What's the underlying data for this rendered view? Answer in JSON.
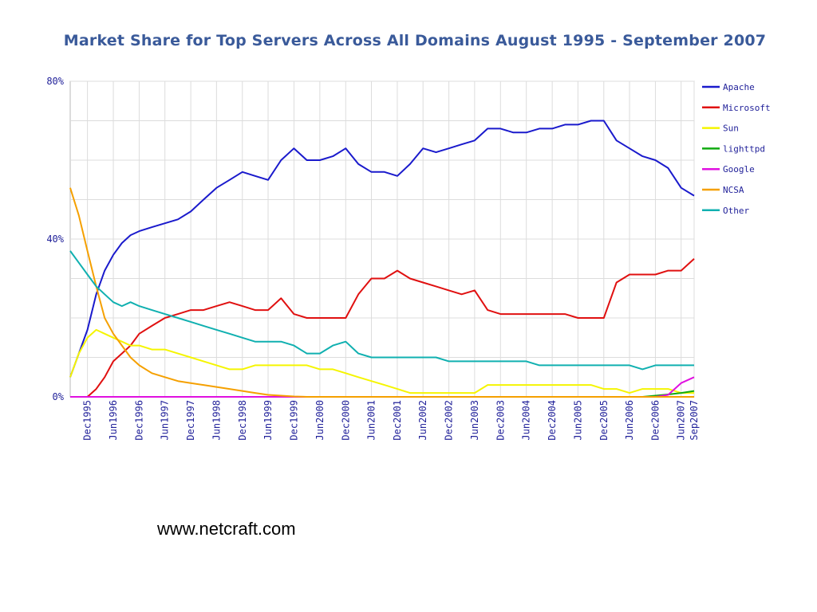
{
  "chart_data": {
    "type": "line",
    "title": "Market Share for Top Servers Across All Domains August 1995 - September 2007",
    "xlabel": "",
    "ylabel": "",
    "ylim": [
      0,
      80
    ],
    "y_ticks": [
      "0%",
      "40%",
      "80%"
    ],
    "x_ticks": [
      "Dec1995",
      "Jun1996",
      "Dec1996",
      "Jun1997",
      "Dec1997",
      "Jun1998",
      "Dec1998",
      "Jun1999",
      "Dec1999",
      "Jun2000",
      "Dec2000",
      "Jun2001",
      "Dec2001",
      "Jun2002",
      "Dec2002",
      "Jun2003",
      "Dec2003",
      "Jun2004",
      "Dec2004",
      "Jun2005",
      "Dec2005",
      "Jun2006",
      "Dec2006",
      "Jun2007",
      "Sep2007"
    ],
    "grid": true,
    "legend_position": "right",
    "x": [
      "1995-08",
      "1995-10",
      "1995-12",
      "1996-02",
      "1996-04",
      "1996-06",
      "1996-08",
      "1996-10",
      "1996-12",
      "1997-03",
      "1997-06",
      "1997-09",
      "1997-12",
      "1998-03",
      "1998-06",
      "1998-09",
      "1998-12",
      "1999-03",
      "1999-06",
      "1999-09",
      "1999-12",
      "2000-03",
      "2000-06",
      "2000-09",
      "2000-12",
      "2001-03",
      "2001-06",
      "2001-09",
      "2001-12",
      "2002-03",
      "2002-06",
      "2002-09",
      "2002-12",
      "2003-03",
      "2003-06",
      "2003-09",
      "2003-12",
      "2004-03",
      "2004-06",
      "2004-09",
      "2004-12",
      "2005-03",
      "2005-06",
      "2005-09",
      "2005-12",
      "2006-03",
      "2006-06",
      "2006-09",
      "2006-12",
      "2007-03",
      "2007-06",
      "2007-09"
    ],
    "series": [
      {
        "name": "Apache",
        "color": "#1a1acc",
        "values": [
          5,
          11,
          17,
          26,
          32,
          36,
          39,
          41,
          42,
          43,
          44,
          45,
          47,
          50,
          53,
          55,
          57,
          56,
          55,
          60,
          63,
          60,
          60,
          61,
          63,
          59,
          57,
          57,
          56,
          59,
          63,
          62,
          63,
          64,
          65,
          68,
          68,
          67,
          67,
          68,
          68,
          69,
          69,
          70,
          70,
          65,
          63,
          61,
          60,
          58,
          53,
          51
        ]
      },
      {
        "name": "Microsoft",
        "color": "#e01010",
        "values": [
          0,
          0,
          0,
          2,
          5,
          9,
          11,
          13,
          16,
          18,
          20,
          21,
          22,
          22,
          23,
          24,
          23,
          22,
          22,
          25,
          21,
          20,
          20,
          20,
          20,
          26,
          30,
          30,
          32,
          30,
          29,
          28,
          27,
          26,
          27,
          22,
          21,
          21,
          21,
          21,
          21,
          21,
          20,
          20,
          20,
          29,
          31,
          31,
          31,
          32,
          32,
          35
        ]
      },
      {
        "name": "Sun",
        "color": "#f5f500",
        "values": [
          5,
          11,
          15,
          17,
          16,
          15,
          14,
          13,
          13,
          12,
          12,
          11,
          10,
          9,
          8,
          7,
          7,
          8,
          8,
          8,
          8,
          8,
          7,
          7,
          6,
          5,
          4,
          3,
          2,
          1,
          1,
          1,
          1,
          1,
          1,
          3,
          3,
          3,
          3,
          3,
          3,
          3,
          3,
          3,
          2,
          2,
          1,
          2,
          2,
          2,
          1,
          1
        ]
      },
      {
        "name": "lighttpd",
        "color": "#10aa10",
        "values": [
          0,
          0,
          0,
          0,
          0,
          0,
          0,
          0,
          0,
          0,
          0,
          0,
          0,
          0,
          0,
          0,
          0,
          0,
          0,
          0,
          0,
          0,
          0,
          0,
          0,
          0,
          0,
          0,
          0,
          0,
          0,
          0,
          0,
          0,
          0,
          0,
          0,
          0,
          0,
          0,
          0,
          0,
          0,
          0,
          0,
          0,
          0,
          0,
          0.3,
          0.6,
          1,
          1.5
        ]
      },
      {
        "name": "Google",
        "color": "#e010e0",
        "values": [
          0,
          0,
          0,
          0,
          0,
          0,
          0,
          0,
          0,
          0,
          0,
          0,
          0,
          0,
          0,
          0,
          0,
          0,
          0,
          0,
          0,
          0,
          0,
          0,
          0,
          0,
          0,
          0,
          0,
          0,
          0,
          0,
          0,
          0,
          0,
          0,
          0,
          0,
          0,
          0,
          0,
          0,
          0,
          0,
          0,
          0,
          0,
          0,
          0,
          0.5,
          3.5,
          5
        ]
      },
      {
        "name": "NCSA",
        "color": "#f5a000",
        "values": [
          53,
          46,
          37,
          28,
          20,
          16,
          13,
          10,
          8,
          6,
          5,
          4,
          3.5,
          3,
          2.5,
          2,
          1.5,
          1,
          0.5,
          0.3,
          0.1,
          0,
          0,
          0,
          0,
          0,
          0,
          0,
          0,
          0,
          0,
          0,
          0,
          0,
          0,
          0,
          0,
          0,
          0,
          0,
          0,
          0,
          0,
          0,
          0,
          0,
          0,
          0,
          0,
          0,
          0,
          0
        ]
      },
      {
        "name": "Other",
        "color": "#10b0b0",
        "values": [
          37,
          34,
          31,
          28,
          26,
          24,
          23,
          24,
          23,
          22,
          21,
          20,
          19,
          18,
          17,
          16,
          15,
          14,
          14,
          14,
          13,
          11,
          11,
          13,
          14,
          11,
          10,
          10,
          10,
          10,
          10,
          10,
          9,
          9,
          9,
          9,
          9,
          9,
          9,
          8,
          8,
          8,
          8,
          8,
          8,
          8,
          8,
          7,
          8,
          8,
          8,
          8
        ]
      }
    ]
  },
  "credit": "www.netcraft.com"
}
